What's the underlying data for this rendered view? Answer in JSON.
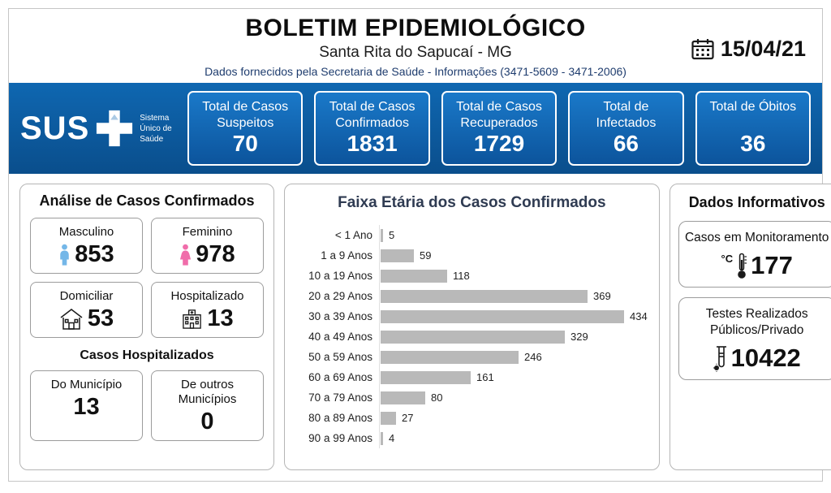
{
  "header": {
    "title": "BOLETIM EPIDEMIOLÓGICO",
    "subtitle": "Santa Rita do Sapucaí - MG",
    "note": "Dados fornecidos pela Secretaria de Saúde - Informações (3471-5609 - 3471-2006)",
    "date": "15/04/21"
  },
  "banner": {
    "logo": {
      "text": "SUS",
      "tagline": "Sistema Único de Saúde",
      "icon": "sus-cross-icon"
    },
    "stats": [
      {
        "label": "Total de Casos Suspeitos",
        "value": "70"
      },
      {
        "label": "Total de Casos Confirmados",
        "value": "1831"
      },
      {
        "label": "Total de Casos Recuperados",
        "value": "1729"
      },
      {
        "label": "Total de Infectados",
        "value": "66"
      },
      {
        "label": "Total de Óbitos",
        "value": "36"
      }
    ]
  },
  "analysis": {
    "title": "Análise de Casos Confirmados",
    "cards": [
      {
        "label": "Masculino",
        "value": "853",
        "icon": "male-icon",
        "icon_color": "#74b7e8"
      },
      {
        "label": "Feminino",
        "value": "978",
        "icon": "female-icon",
        "icon_color": "#f06daa"
      },
      {
        "label": "Domiciliar",
        "value": "53",
        "icon": "house-icon"
      },
      {
        "label": "Hospitalizado",
        "value": "13",
        "icon": "hospital-icon"
      }
    ],
    "hospitalized": {
      "title": "Casos Hospitalizados",
      "cards": [
        {
          "label": "Do Município",
          "value": "13"
        },
        {
          "label": "De outros Municípios",
          "value": "0"
        }
      ]
    }
  },
  "chart_data": {
    "type": "bar",
    "orientation": "horizontal",
    "title": "Faixa Etária dos Casos Confirmados",
    "categories": [
      "< 1 Ano",
      "1 a 9 Anos",
      "10 a 19 Anos",
      "20 a 29 Anos",
      "30 a 39 Anos",
      "40 a 49 Anos",
      "50 a 59 Anos",
      "60 a 69 Anos",
      "70 a 79 Anos",
      "80 a 89 Anos",
      "90 a 99 Anos"
    ],
    "values": [
      5,
      59,
      118,
      369,
      434,
      329,
      246,
      161,
      80,
      27,
      4
    ],
    "bar_color": "#b9b9b9",
    "xlim": [
      0,
      434
    ],
    "data_labels": true,
    "grid": false,
    "legend": false
  },
  "info": {
    "title": "Dados Informativos",
    "cards": [
      {
        "label": "Casos em Monitoramento",
        "value": "177",
        "unit": "°C",
        "icon": "thermometer-icon"
      },
      {
        "label": "Testes Realizados Públicos/Privado",
        "value": "10422",
        "icon": "testtube-icon"
      }
    ]
  },
  "colors": {
    "banner_blue": "#0f67b1",
    "banner_blue_dark": "#0a4e8c",
    "note_blue": "#1e3c6e",
    "bar_gray": "#b9b9b9"
  }
}
